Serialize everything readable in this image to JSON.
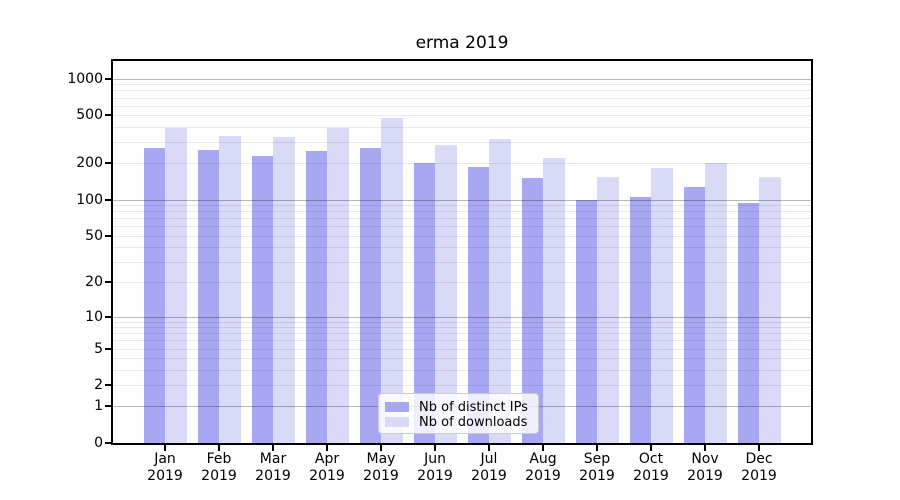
{
  "chart_data": {
    "type": "bar",
    "title": "erma 2019",
    "categories": [
      "Jan 2019",
      "Feb 2019",
      "Mar 2019",
      "Apr 2019",
      "May 2019",
      "Jun 2019",
      "Jul 2019",
      "Aug 2019",
      "Sep 2019",
      "Oct 2019",
      "Nov 2019",
      "Dec 2019"
    ],
    "series": [
      {
        "name": "Nb of distinct IPs",
        "color": "#a8a8f2",
        "values": [
          270,
          260,
          230,
          253,
          270,
          200,
          186,
          150,
          100,
          106,
          127,
          93
        ]
      },
      {
        "name": "Nb of downloads",
        "color": "#d9d9f8",
        "values": [
          390,
          335,
          330,
          395,
          470,
          285,
          316,
          222,
          155,
          183,
          200,
          155
        ]
      }
    ],
    "y_scale": "log1p",
    "ylim": [
      0,
      1400
    ],
    "y_ticks": [
      0,
      1,
      2,
      5,
      10,
      20,
      50,
      100,
      200,
      500,
      1000
    ],
    "major_grid_values": [
      1,
      10,
      100,
      1000
    ],
    "minor_grid_values": [
      2,
      3,
      4,
      5,
      6,
      7,
      8,
      9,
      20,
      30,
      40,
      50,
      60,
      70,
      80,
      90,
      200,
      300,
      400,
      500,
      600,
      700,
      800,
      900
    ],
    "xlabel": "",
    "ylabel": "",
    "grid": "horizontal",
    "legend_position": "lower center"
  },
  "colors": {
    "background": "#ffffff",
    "bar_distinct_ips": "#a8a8f2",
    "bar_downloads": "#d9d9f8",
    "major_grid": "rgba(0,0,0,0.28)",
    "minor_grid": "rgba(0,0,0,0.09)",
    "axis": "#000000",
    "legend_border": "#cccccc",
    "legend_background": "rgba(255,255,255,0.8)"
  }
}
